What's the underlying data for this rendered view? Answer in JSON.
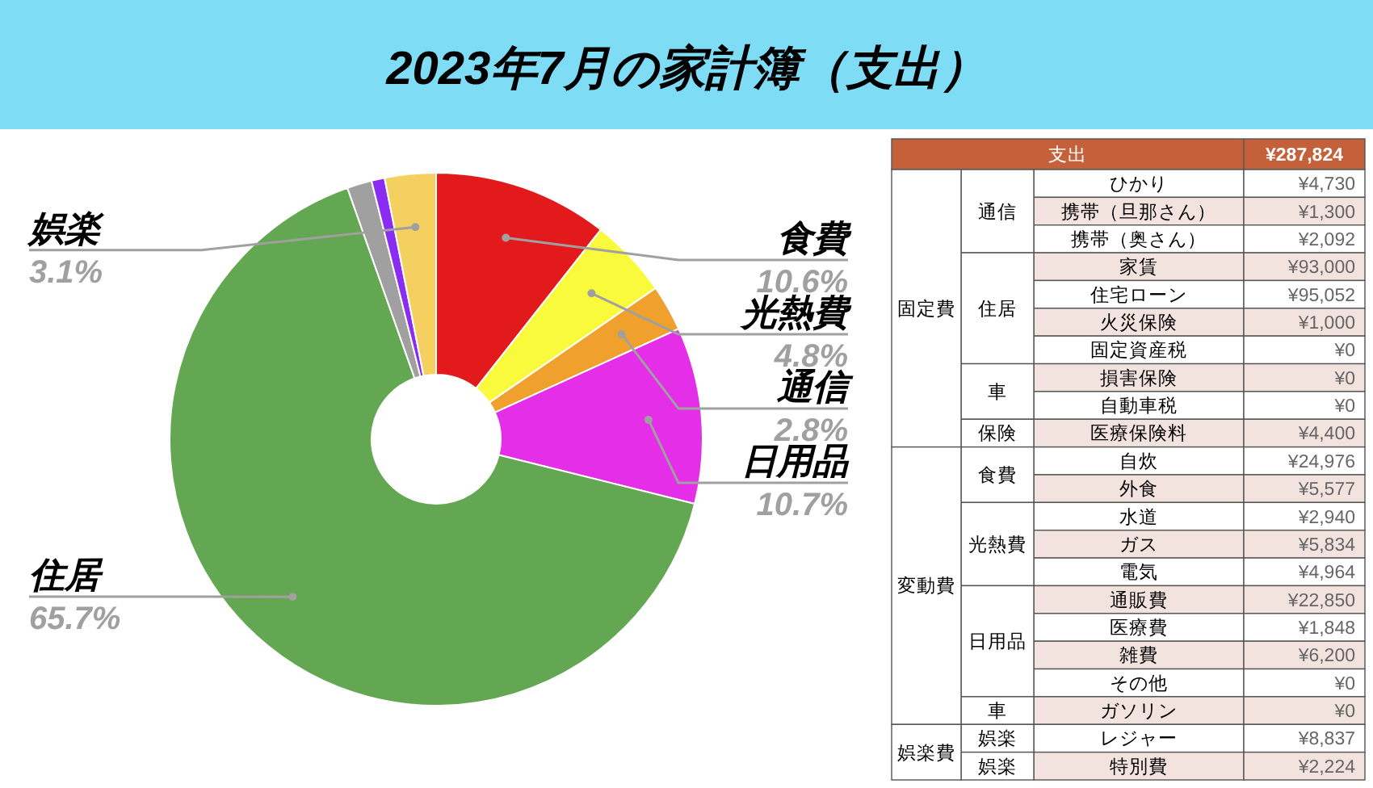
{
  "chart_data": [
    {
      "type": "donut",
      "title": "2023年7月の家計簿（支出）",
      "categories": [
        "食費",
        "光熱費",
        "通信",
        "日用品",
        "住居",
        null,
        null,
        "娯楽"
      ],
      "values": [
        10.6,
        4.8,
        2.8,
        10.7,
        65.7,
        1.5,
        0.8,
        3.1
      ],
      "value_labels": [
        "10.6%",
        "4.8%",
        "2.8%",
        "10.7%",
        "65.7%",
        null,
        null,
        "3.1%"
      ],
      "colors": [
        "#e31a1c",
        "#fafa3c",
        "#f0a02c",
        "#e42ee8",
        "#64a752",
        "#a0a0a0",
        "#8a2cf2",
        "#f4d060"
      ]
    },
    {
      "type": "other",
      "title": "支出",
      "totals": [
        "¥287,824"
      ],
      "annotations": [
        {
          "text": "固定費",
          "y": "ひかり"
        },
        {
          "text": "変動費",
          "y": "自炊"
        },
        {
          "text": "娯楽費",
          "y": "レジャー"
        }
      ],
      "y_categories": [
        "ひかり",
        "携帯（旦那さん）",
        "携帯（奥さん）",
        "家賃",
        "住宅ローン",
        "火災保険",
        "固定資産税",
        "損害保険",
        "自動車税",
        "医療保険料",
        "自炊",
        "外食",
        "水道",
        "ガス",
        "電気",
        "通販費",
        "医療費",
        "雑費",
        "その他",
        "ガソリン",
        "レジャー",
        "特別費"
      ],
      "y2_categories": [
        "通信",
        null,
        null,
        "住居",
        null,
        null,
        null,
        "車",
        null,
        "保険",
        "食費",
        null,
        "光熱費",
        null,
        null,
        "日用品",
        null,
        null,
        null,
        "車",
        "娯楽",
        "娯楽"
      ],
      "cell_labels": [
        [
          "¥4,730"
        ],
        [
          "¥1,300"
        ],
        [
          "¥2,092"
        ],
        [
          "¥93,000"
        ],
        [
          "¥95,052"
        ],
        [
          "¥1,000"
        ],
        [
          "¥0"
        ],
        [
          "¥0"
        ],
        [
          "¥0"
        ],
        [
          "¥4,400"
        ],
        [
          "¥24,976"
        ],
        [
          "¥5,577"
        ],
        [
          "¥2,940"
        ],
        [
          "¥5,834"
        ],
        [
          "¥4,964"
        ],
        [
          "¥22,850"
        ],
        [
          "¥1,848"
        ],
        [
          "¥6,200"
        ],
        [
          "¥0"
        ],
        [
          "¥0"
        ],
        [
          "¥8,837"
        ],
        [
          "¥2,224"
        ]
      ]
    }
  ]
}
